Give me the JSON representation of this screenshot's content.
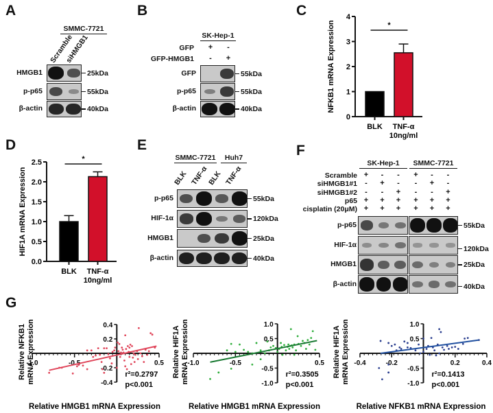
{
  "panels": {
    "A": {
      "label": "A",
      "cell_line": "SMMC-7721",
      "lanes": [
        "Scramble",
        "siHMGB1"
      ],
      "rows": [
        {
          "protein": "HMGB1",
          "size": "25kDa",
          "intensity": [
            1.0,
            0.55
          ]
        },
        {
          "protein": "p-p65",
          "size": "55kDa",
          "intensity": [
            0.6,
            0.12
          ]
        },
        {
          "protein": "β-actin",
          "size": "40kDa",
          "intensity": [
            0.85,
            0.85
          ]
        }
      ]
    },
    "B": {
      "label": "B",
      "cell_line": "SK-Hep-1",
      "conditions": [
        {
          "name": "GFP",
          "signs": [
            "+",
            "-"
          ]
        },
        {
          "name": "GFP-HMGB1",
          "signs": [
            "-",
            "+"
          ]
        }
      ],
      "rows": [
        {
          "protein": "GFP",
          "size": "55kDa",
          "intensity": [
            0.0,
            0.7
          ]
        },
        {
          "protein": "p-p65",
          "size": "55kDa",
          "intensity": [
            0.2,
            0.7
          ]
        },
        {
          "protein": "β-actin",
          "size": "40kDa",
          "intensity": [
            1.0,
            1.0
          ]
        }
      ]
    },
    "E": {
      "label": "E",
      "groups": [
        {
          "cell_line": "SMMC-7721",
          "lanes": [
            "BLK",
            "TNF-α"
          ]
        },
        {
          "cell_line": "Huh7",
          "lanes": [
            "BLK",
            "TNF-α"
          ]
        }
      ],
      "rows": [
        {
          "protein": "p-p65",
          "size": "55kDa",
          "intensity": [
            0.55,
            1.0,
            0.5,
            1.0
          ]
        },
        {
          "protein": "HIF-1α",
          "size": "120kDa",
          "intensity": [
            0.7,
            1.0,
            0.25,
            0.45
          ]
        },
        {
          "protein": "HMGB1",
          "size": "25kDa",
          "intensity": [
            0.0,
            0.55,
            0.7,
            1.0
          ]
        },
        {
          "protein": "β-actin",
          "size": "40kDa",
          "intensity": [
            0.9,
            0.9,
            0.9,
            0.9
          ]
        }
      ]
    },
    "F": {
      "label": "F",
      "groups": [
        {
          "cell_line": "SK-Hep-1"
        },
        {
          "cell_line": "SMMC-7721"
        }
      ],
      "conditions": [
        {
          "name": "Scramble",
          "signs": [
            "+",
            "-",
            "-",
            "+",
            "-",
            "-"
          ]
        },
        {
          "name": "siHMGB1#1",
          "signs": [
            "-",
            "+",
            "-",
            "-",
            "+",
            "-"
          ]
        },
        {
          "name": "siHMGB1#2",
          "signs": [
            "-",
            "-",
            "+",
            "-",
            "-",
            "+"
          ]
        },
        {
          "name": "p65",
          "signs": [
            "+",
            "+",
            "+",
            "+",
            "+",
            "+"
          ]
        },
        {
          "name": "cisplatin (20μM)",
          "signs": [
            "+",
            "+",
            "+",
            "+",
            "+",
            "+"
          ]
        }
      ],
      "rows": [
        {
          "protein": "p-p65",
          "size": "55kDa",
          "intensity": [
            0.6,
            0.25,
            0.3,
            1.0,
            1.0,
            1.0
          ]
        },
        {
          "protein": "HIF-1α",
          "size": "120kDa",
          "intensity": [
            0.1,
            0.15,
            0.3,
            0.05,
            0.05,
            0.05
          ]
        },
        {
          "protein": "HMGB1",
          "size": "25kDa",
          "intensity": [
            0.75,
            0.45,
            0.45,
            0.35,
            0.2,
            0.2
          ]
        },
        {
          "protein": "β-actin",
          "size": "40kDa",
          "intensity": [
            1.0,
            1.0,
            1.0,
            0.3,
            0.35,
            0.3
          ]
        }
      ]
    },
    "G": {
      "label": "G"
    }
  },
  "chart_data": [
    {
      "id": "C",
      "label": "C",
      "type": "bar",
      "categories": [
        "BLK",
        "TNF-α\n10ng/ml"
      ],
      "category_lines": [
        [
          "BLK"
        ],
        [
          "TNF-α",
          "10ng/ml"
        ]
      ],
      "values": [
        1.0,
        2.55
      ],
      "errors": [
        0,
        0.35
      ],
      "colors": [
        "#000000",
        "#d2102a"
      ],
      "ylabel": "NFKB1 mRNA Expression",
      "xlabel": "",
      "ylim": [
        0,
        4
      ],
      "yticks": [
        "0",
        "1",
        "2",
        "3",
        "4"
      ],
      "ytick_values": [
        0,
        1,
        2,
        3,
        4
      ],
      "significance": "*"
    },
    {
      "id": "D",
      "label": "D",
      "type": "bar",
      "categories": [
        "BLK",
        "TNF-α\n10ng/ml"
      ],
      "category_lines": [
        [
          "BLK"
        ],
        [
          "TNF-α",
          "10ng/ml"
        ]
      ],
      "values": [
        1.0,
        2.13
      ],
      "errors": [
        0.15,
        0.12
      ],
      "colors": [
        "#000000",
        "#d2102a"
      ],
      "ylabel": "HIF1A mRNA Expression",
      "xlabel": "",
      "ylim": [
        0,
        2.5
      ],
      "yticks": [
        "0.0",
        "0.5",
        "1.0",
        "1.5",
        "2.0",
        "2.5"
      ],
      "ytick_values": [
        0,
        0.5,
        1.0,
        1.5,
        2.0,
        2.5
      ],
      "significance": "*"
    },
    {
      "id": "G1",
      "type": "scatter",
      "color": "#e0455a",
      "line_color": "#e0455a",
      "xlabel": "Relative HMGB1 mRNA Expression",
      "ylabel_lines": [
        "Relative NFKB1",
        "mRNA Expression"
      ],
      "xlim": [
        -1.0,
        0.5
      ],
      "ylim": [
        -0.4,
        0.4
      ],
      "xticks": [
        "-1.0",
        "-0.5",
        "0.5"
      ],
      "xtick_values": [
        -1.0,
        -0.5,
        0.5
      ],
      "yticks": [
        "0.4",
        "0.2",
        "-0.2",
        "-0.4"
      ],
      "ytick_values": [
        0.4,
        0.2,
        -0.2,
        -0.4
      ],
      "fit": {
        "x": [
          -0.8,
          0.47
        ],
        "y": [
          -0.235,
          0.1
        ]
      },
      "annotation": [
        "r²=0.2797",
        "p<0.001"
      ],
      "points": [
        [
          -0.8,
          -0.27
        ],
        [
          -0.68,
          -0.2
        ],
        [
          -0.65,
          -0.2
        ],
        [
          -0.52,
          -0.28
        ],
        [
          -0.47,
          -0.18
        ],
        [
          -0.45,
          -0.16
        ],
        [
          -0.4,
          -0.17
        ],
        [
          -0.35,
          -0.22
        ],
        [
          -0.35,
          0.04
        ],
        [
          -0.3,
          0.04
        ],
        [
          -0.28,
          -0.05
        ],
        [
          -0.25,
          -0.03
        ],
        [
          -0.22,
          0.07
        ],
        [
          -0.2,
          -0.02
        ],
        [
          -0.18,
          -0.12
        ],
        [
          -0.17,
          -0.22
        ],
        [
          -0.15,
          0.07
        ],
        [
          -0.15,
          -0.27
        ],
        [
          -0.12,
          0.07
        ],
        [
          -0.1,
          -0.01
        ],
        [
          -0.08,
          -0.07
        ],
        [
          -0.06,
          -0.14
        ],
        [
          -0.05,
          0.02
        ],
        [
          -0.03,
          0.04
        ],
        [
          -0.02,
          0.08
        ],
        [
          0.0,
          -0.2
        ],
        [
          0.01,
          0.15
        ],
        [
          0.02,
          0.03
        ],
        [
          0.03,
          0.13
        ],
        [
          0.04,
          -0.05
        ],
        [
          0.05,
          0.01
        ],
        [
          0.06,
          0.08
        ],
        [
          0.07,
          0.05
        ],
        [
          0.08,
          0.01
        ],
        [
          0.09,
          -0.1
        ],
        [
          0.1,
          -0.18
        ],
        [
          0.1,
          0.25
        ],
        [
          0.11,
          0.06
        ],
        [
          0.12,
          -0.22
        ],
        [
          0.13,
          0.1
        ],
        [
          0.14,
          0.02
        ],
        [
          0.15,
          0.08
        ],
        [
          0.15,
          -0.05
        ],
        [
          0.16,
          0.12
        ],
        [
          0.17,
          -0.15
        ],
        [
          0.18,
          0.1
        ],
        [
          0.19,
          -0.06
        ],
        [
          0.2,
          0.0
        ],
        [
          0.21,
          -0.12
        ],
        [
          0.22,
          -0.02
        ],
        [
          0.24,
          0.03
        ],
        [
          0.25,
          -0.08
        ],
        [
          0.26,
          0.35
        ],
        [
          0.28,
          0.0
        ],
        [
          0.3,
          -0.04
        ],
        [
          0.32,
          -0.12
        ],
        [
          0.34,
          0.05
        ],
        [
          0.36,
          -0.02
        ],
        [
          0.38,
          0.03
        ],
        [
          0.4,
          0.28
        ],
        [
          0.42,
          0.26
        ],
        [
          0.45,
          0.08
        ]
      ]
    },
    {
      "id": "G2",
      "type": "scatter",
      "color": "#2fae3c",
      "line_color": "#1a7a33",
      "xlabel": "Relative HMGB1 mRNA Expression",
      "ylabel_lines": [
        "Relative HIF1A",
        "mRNA Expression"
      ],
      "xlim": [
        -1.0,
        0.5
      ],
      "ylim": [
        -1.0,
        1.0
      ],
      "xticks": [
        "-1.0",
        "-0.5",
        "0.5"
      ],
      "xtick_values": [
        -1.0,
        -0.5,
        0.5
      ],
      "yticks": [
        "1.0",
        "0.5",
        "-0.5",
        "-1.0"
      ],
      "ytick_values": [
        1.0,
        0.5,
        -0.5,
        -1.0
      ],
      "fit": {
        "x": [
          -0.8,
          0.47
        ],
        "y": [
          -0.3,
          0.43
        ]
      },
      "annotation": [
        "r²=0.3505",
        "p<0.001"
      ],
      "points": [
        [
          -0.8,
          -0.87
        ],
        [
          -0.7,
          -0.65
        ],
        [
          -0.55,
          -0.52
        ],
        [
          -0.6,
          0.1
        ],
        [
          -0.5,
          0.05
        ],
        [
          -0.45,
          0.3
        ],
        [
          -0.4,
          0.12
        ],
        [
          -0.35,
          0.05
        ],
        [
          -0.3,
          0.0
        ],
        [
          -0.25,
          0.35
        ],
        [
          -0.2,
          -0.2
        ],
        [
          -0.2,
          0.1
        ],
        [
          -0.15,
          0.0
        ],
        [
          -0.12,
          0.4
        ],
        [
          -0.1,
          0.1
        ],
        [
          -0.08,
          0.2
        ],
        [
          -0.05,
          0.25
        ],
        [
          -0.02,
          0.18
        ],
        [
          0.0,
          0.05
        ],
        [
          0.02,
          0.15
        ],
        [
          0.04,
          0.35
        ],
        [
          0.05,
          0.22
        ],
        [
          0.06,
          -0.05
        ],
        [
          0.08,
          0.28
        ],
        [
          0.1,
          0.1
        ],
        [
          0.12,
          0.22
        ],
        [
          0.13,
          0.3
        ],
        [
          0.14,
          0.15
        ],
        [
          0.15,
          0.25
        ],
        [
          0.16,
          0.82
        ],
        [
          0.17,
          0.27
        ],
        [
          0.18,
          0.2
        ],
        [
          0.2,
          0.3
        ],
        [
          0.2,
          -0.05
        ],
        [
          0.22,
          0.1
        ],
        [
          0.24,
          0.58
        ],
        [
          0.25,
          0.32
        ],
        [
          0.28,
          0.25
        ],
        [
          0.3,
          0.42
        ],
        [
          0.32,
          0.35
        ],
        [
          0.34,
          0.15
        ],
        [
          0.36,
          0.45
        ],
        [
          0.38,
          0.3
        ],
        [
          0.4,
          0.52
        ],
        [
          0.42,
          0.75
        ],
        [
          0.45,
          0.12
        ],
        [
          -0.3,
          -0.38
        ],
        [
          -0.55,
          0.32
        ]
      ]
    },
    {
      "id": "G3",
      "type": "scatter",
      "color": "#2b3f8f",
      "line_color": "#1f4f9f",
      "xlabel": "Relative NFKB1 mRNA Expression",
      "ylabel_lines": [
        "Relative HIF1A",
        "mRNA Expression"
      ],
      "xlim": [
        -0.4,
        0.4
      ],
      "ylim": [
        -1.0,
        1.0
      ],
      "xticks": [
        "-0.4",
        "-0.2",
        "0.2",
        "0.4"
      ],
      "xtick_values": [
        -0.4,
        -0.2,
        0.2,
        0.4
      ],
      "yticks": [
        "1.0",
        "0.5",
        "-0.5",
        "-1.0"
      ],
      "ytick_values": [
        1.0,
        0.5,
        -0.5,
        -1.0
      ],
      "fit": {
        "x": [
          -0.27,
          0.35
        ],
        "y": [
          0.0,
          0.45
        ]
      },
      "annotation": [
        "r²=0.1413",
        "p<0.001"
      ],
      "points": [
        [
          -0.27,
          0.42
        ],
        [
          -0.28,
          -0.5
        ],
        [
          -0.26,
          -0.88
        ],
        [
          -0.22,
          -0.38
        ],
        [
          -0.22,
          -0.65
        ],
        [
          -0.22,
          0.35
        ],
        [
          -0.2,
          0.25
        ],
        [
          -0.18,
          0.3
        ],
        [
          -0.17,
          0.1
        ],
        [
          -0.15,
          0.2
        ],
        [
          -0.14,
          0.15
        ],
        [
          -0.12,
          0.4
        ],
        [
          -0.1,
          0.35
        ],
        [
          -0.1,
          0.2
        ],
        [
          -0.08,
          0.18
        ],
        [
          -0.05,
          0.1
        ],
        [
          -0.03,
          0.3
        ],
        [
          -0.02,
          0.0
        ],
        [
          0.0,
          0.5
        ],
        [
          0.0,
          0.05
        ],
        [
          0.02,
          0.15
        ],
        [
          0.03,
          0.25
        ],
        [
          0.04,
          -0.05
        ],
        [
          0.05,
          0.52
        ],
        [
          0.06,
          0.2
        ],
        [
          0.07,
          0.1
        ],
        [
          0.08,
          -0.07
        ],
        [
          0.09,
          0.3
        ],
        [
          0.1,
          0.82
        ],
        [
          0.1,
          0.0
        ],
        [
          0.11,
          0.72
        ],
        [
          0.12,
          0.2
        ],
        [
          0.13,
          0.12
        ],
        [
          0.15,
          0.25
        ],
        [
          0.16,
          0.15
        ],
        [
          0.18,
          0.2
        ],
        [
          0.2,
          0.22
        ],
        [
          0.22,
          0.15
        ],
        [
          0.25,
          0.32
        ],
        [
          0.26,
          0.5
        ],
        [
          0.28,
          0.52
        ],
        [
          0.35,
          0.45
        ]
      ]
    }
  ]
}
